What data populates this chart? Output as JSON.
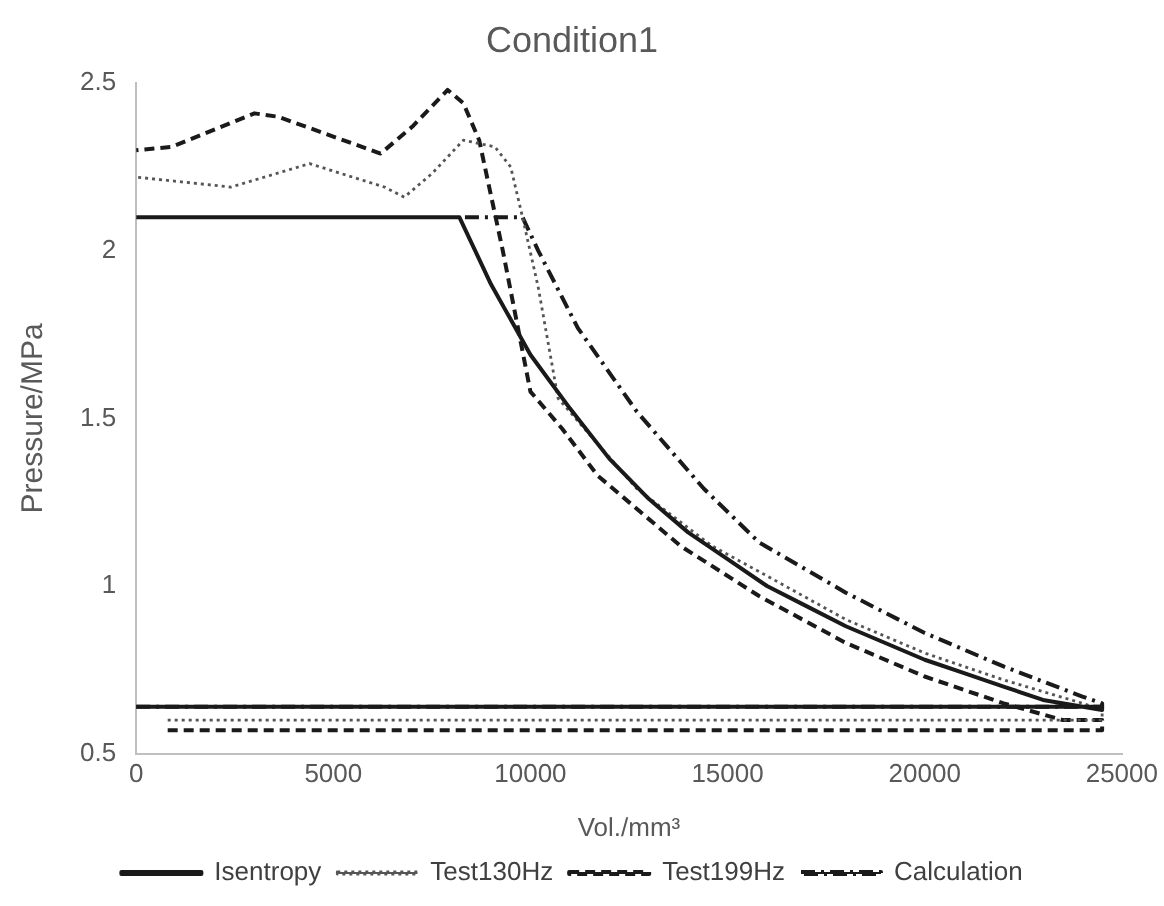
{
  "chart_data": {
    "type": "line",
    "title": "Condition1",
    "xlabel": "Vol./mm³",
    "ylabel": "Pressure/MPa",
    "xlim": [
      0,
      25000
    ],
    "xticks": [
      0,
      5000,
      10000,
      15000,
      20000,
      25000
    ],
    "ylim": [
      0.5,
      2.5
    ],
    "yticks": [
      0.5,
      1,
      1.5,
      2,
      2.5
    ],
    "grid": false,
    "legend": "bottom",
    "marker": "none",
    "series": [
      {
        "name": "Isentropy",
        "color": "#1a1a1a",
        "line_style": "solid",
        "x": [
          0,
          24500,
          24500,
          23000,
          22000,
          21000,
          20000,
          19000,
          18000,
          17000,
          16000,
          15000,
          14000,
          13000,
          12000,
          11000,
          10000,
          9000,
          8200,
          0
        ],
        "values": [
          0.64,
          0.64,
          0.63,
          0.66,
          0.7,
          0.74,
          0.78,
          0.83,
          0.88,
          0.94,
          1.0,
          1.08,
          1.16,
          1.26,
          1.38,
          1.53,
          1.69,
          1.9,
          2.1,
          2.1
        ]
      },
      {
        "name": "Test130Hz",
        "color": "#555555",
        "line_style": "dotted",
        "x": [
          800,
          24500,
          24500,
          24000,
          22000,
          20000,
          18000,
          16000,
          14600,
          12700,
          10700,
          10200,
          9800,
          9500,
          9100,
          8300,
          7500,
          6800,
          6300,
          4400,
          2400,
          0
        ],
        "values": [
          0.6,
          0.6,
          0.63,
          0.65,
          0.72,
          0.8,
          0.9,
          1.03,
          1.12,
          1.29,
          1.56,
          1.89,
          2.1,
          2.25,
          2.31,
          2.33,
          2.23,
          2.16,
          2.19,
          2.26,
          2.19,
          2.22
        ]
      },
      {
        "name": "Test199Hz",
        "color": "#1a1a1a",
        "line_style": "dashed",
        "x": [
          800,
          24500,
          24500,
          23500,
          22000,
          20000,
          18000,
          15800,
          13800,
          11700,
          10800,
          10000,
          9300,
          8700,
          8300,
          7900,
          7000,
          6200,
          3600,
          3000,
          900,
          0
        ],
        "values": [
          0.57,
          0.57,
          0.6,
          0.6,
          0.65,
          0.73,
          0.83,
          0.97,
          1.12,
          1.33,
          1.47,
          1.58,
          2.0,
          2.33,
          2.44,
          2.48,
          2.37,
          2.29,
          2.4,
          2.41,
          2.31,
          2.3
        ]
      },
      {
        "name": "Calculation",
        "color": "#1a1a1a",
        "line_style": "dashdot",
        "x": [
          0,
          24500,
          24500,
          24000,
          22000,
          20000,
          18000,
          15800,
          14400,
          12700,
          11200,
          10200,
          9800,
          8200
        ],
        "values": [
          0.64,
          0.64,
          0.65,
          0.67,
          0.76,
          0.86,
          0.98,
          1.13,
          1.29,
          1.52,
          1.77,
          2.0,
          2.1,
          2.1
        ]
      }
    ]
  }
}
